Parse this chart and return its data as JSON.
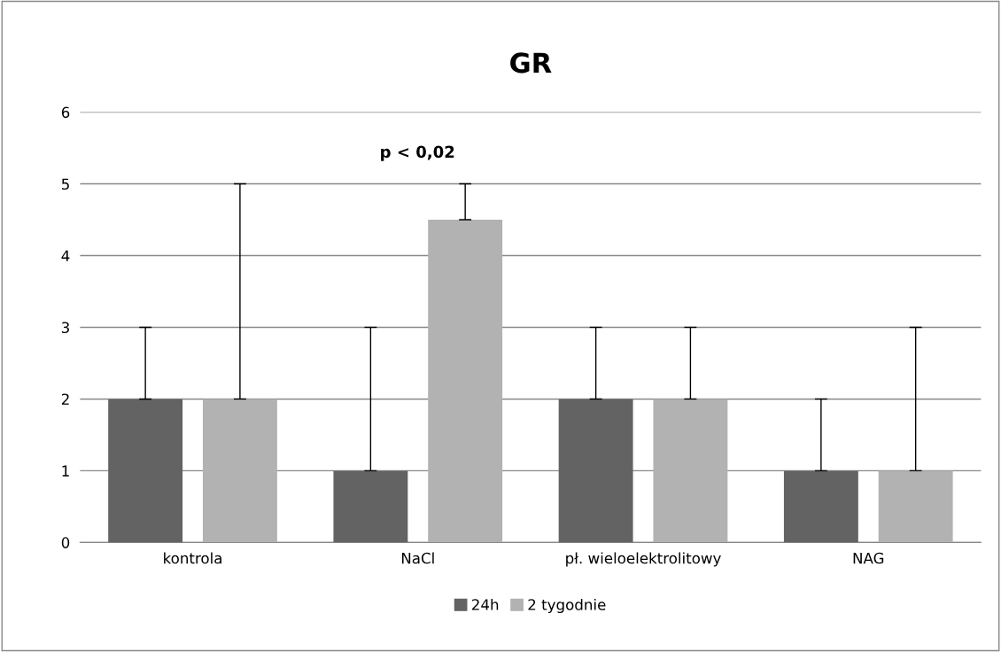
{
  "chart_data": {
    "type": "bar",
    "title": "GR",
    "categories": [
      "kontrola",
      "NaCl",
      "pł. wieloelektrolitowy",
      "NAG"
    ],
    "series": [
      {
        "name": "24h",
        "color": "#636363",
        "values": [
          2,
          1,
          2,
          1
        ],
        "errors": [
          [
            2,
            3
          ],
          [
            1,
            3
          ],
          [
            2,
            3
          ],
          [
            1,
            2
          ]
        ]
      },
      {
        "name": "2 tygodnie",
        "color": "#b2b2b2",
        "values": [
          2,
          4.5,
          2,
          1
        ],
        "errors": [
          [
            2,
            5
          ],
          [
            4.5,
            5
          ],
          [
            2,
            3
          ],
          [
            1,
            3
          ]
        ]
      }
    ],
    "annotations": [
      "p < 0,02"
    ],
    "ylim": [
      0,
      6
    ],
    "yticks": [
      0,
      1,
      2,
      3,
      4,
      5,
      6
    ],
    "grid": "y",
    "legend": "bottom"
  }
}
